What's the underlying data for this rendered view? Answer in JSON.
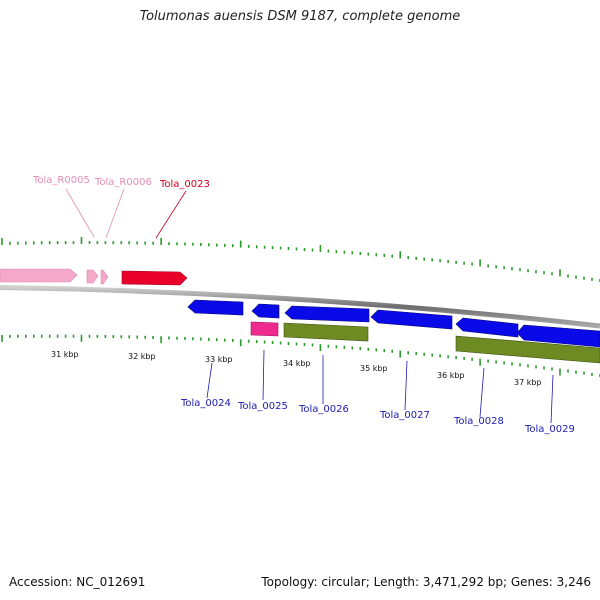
{
  "title": "Tolumonas auensis DSM 9187, complete genome",
  "footer": {
    "accession": "Accession: NC_012691",
    "stats": "Topology: circular; Length: 3,471,292 bp; Genes: 3,246"
  },
  "colors": {
    "rrna": "#f5a9c9",
    "rrna_label": "#e58db5",
    "trna": "#e8002a",
    "cds_blue": "#0a0ae8",
    "cds_label": "#1b1bb0",
    "ncrna": "#ee2a8e",
    "gene_olive": "#6e8a22",
    "tick": "#2a9a2a",
    "backbone": "#7f7f7f"
  },
  "scale": {
    "tick_labels": [
      "31 kbp",
      "32 kbp",
      "33 kbp",
      "34 kbp",
      "35 kbp",
      "36 kbp",
      "37 kbp"
    ]
  },
  "features": [
    {
      "label": "",
      "type": "rrna",
      "strand": "+"
    },
    {
      "label": "Tola_R0005",
      "type": "rrna",
      "strand": "+"
    },
    {
      "label": "Tola_R0006",
      "type": "rrna",
      "strand": "+"
    },
    {
      "label": "Tola_0023",
      "type": "trna",
      "strand": "+"
    },
    {
      "label": "Tola_0024",
      "type": "cds",
      "strand": "-"
    },
    {
      "label": "Tola_0025",
      "type": "cds",
      "strand": "-"
    },
    {
      "label": "Tola_0026",
      "type": "cds",
      "strand": "-"
    },
    {
      "label": "Tola_0027",
      "type": "cds",
      "strand": "-"
    },
    {
      "label": "Tola_0028",
      "type": "cds",
      "strand": "-"
    },
    {
      "label": "Tola_0029",
      "type": "cds",
      "strand": "-"
    }
  ]
}
